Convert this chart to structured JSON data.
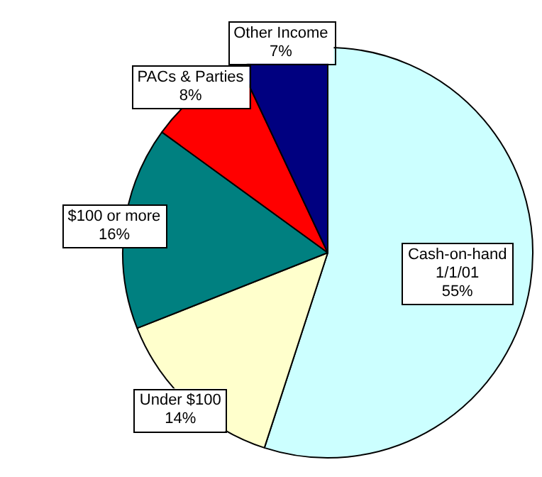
{
  "chart_data": {
    "type": "pie",
    "categories": [
      "Cash-on-hand 1/1/01",
      "Under $100",
      "$100 or more",
      "PACs & Parties",
      "Other Income"
    ],
    "values": [
      55,
      14,
      16,
      8,
      7
    ],
    "colors": [
      "#ccffff",
      "#ffffcc",
      "#008080",
      "#ff0000",
      "#000080"
    ],
    "value_labels": [
      "55%",
      "14%",
      "16%",
      "8%",
      "7%"
    ]
  }
}
